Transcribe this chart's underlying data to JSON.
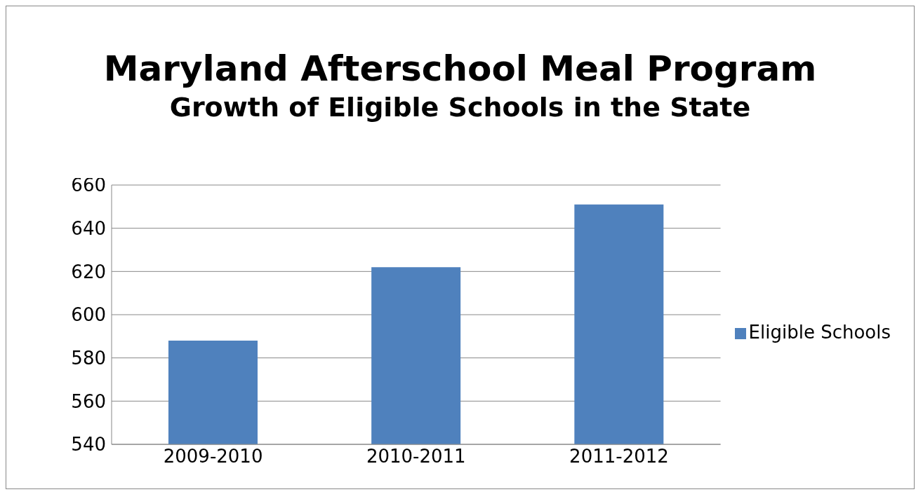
{
  "chart_data": {
    "type": "bar",
    "title": "Maryland Afterschool Meal Program",
    "subtitle": "Growth of Eligible Schools in the State",
    "categories": [
      "2009-2010",
      "2010-2011",
      "2011-2012"
    ],
    "series": [
      {
        "name": "Eligible Schools",
        "color": "#4f81bd",
        "values": [
          588,
          622,
          651
        ]
      }
    ],
    "ylim": [
      540,
      660
    ],
    "yticks": [
      540,
      560,
      580,
      600,
      620,
      640,
      660
    ],
    "grid": "y",
    "legend": "right"
  }
}
